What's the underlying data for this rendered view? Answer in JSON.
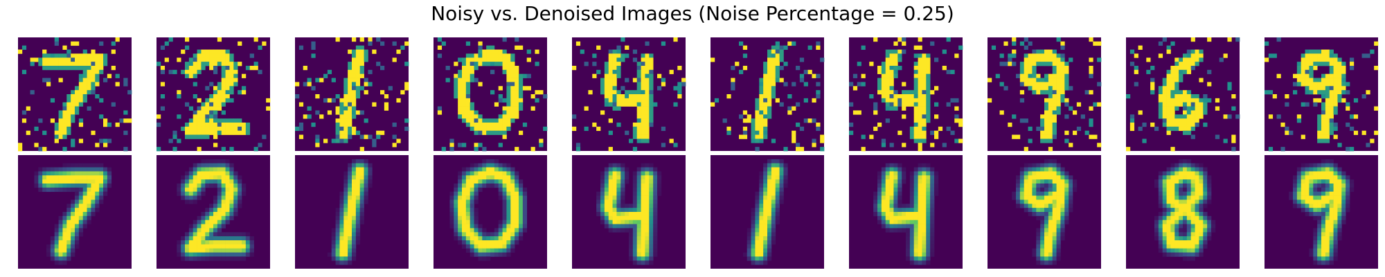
{
  "chart_data": {
    "type": "heatmap",
    "title": "Noisy vs. Denoised Images (Noise Percentage = 0.25)",
    "noise_percentage": 0.25,
    "grid": {
      "rows": [
        "noisy",
        "denoised"
      ],
      "columns": 10
    },
    "colormap": "viridis",
    "colormap_endpoints": {
      "low": "#440154",
      "mid": "#21918c",
      "high": "#fde725"
    },
    "value_range": [
      0,
      1
    ],
    "axes_visible": false,
    "digits": [
      7,
      2,
      1,
      0,
      4,
      1,
      4,
      9,
      6,
      9
    ],
    "denoised_digits": [
      7,
      2,
      1,
      0,
      4,
      1,
      4,
      9,
      8,
      9
    ]
  }
}
